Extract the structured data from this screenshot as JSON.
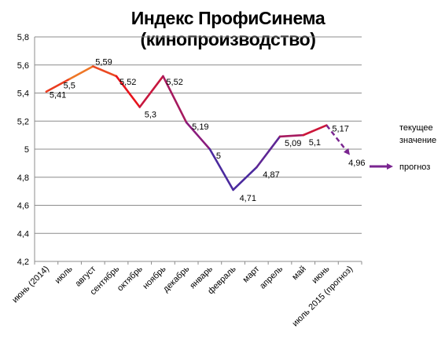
{
  "chart_data": {
    "type": "line",
    "title": "Индекс ПрофиСинема (кинопроизводство)",
    "categories": [
      "июнь (2014)",
      "июль",
      "август",
      "сентябрь",
      "октябрь",
      "ноябрь",
      "декабрь",
      "январь",
      "февраль",
      "март",
      "апрель",
      "май",
      "июнь",
      "июль 2015 (прогноз)"
    ],
    "values": [
      5.41,
      5.5,
      5.59,
      5.52,
      5.3,
      5.52,
      5.19,
      5.0,
      4.71,
      4.87,
      5.09,
      5.1,
      5.17,
      4.96
    ],
    "data_labels": [
      "5,41",
      "5,5",
      "5,59",
      "5,52",
      "5,3",
      "5,52",
      "5,19",
      "5",
      "4,71",
      "4,87",
      "5,09",
      "5,1",
      "5,17",
      "4,96"
    ],
    "forecast_index": 13,
    "ylim": [
      4.2,
      5.8
    ],
    "yticks": [
      "4,2",
      "4,4",
      "4,6",
      "4,8",
      "5",
      "5,2",
      "5,4",
      "5,6",
      "5,8"
    ],
    "grid": true,
    "legend_position": "right",
    "legend": [
      {
        "label_line1": "текущее",
        "label_line2": "значение",
        "style": "solid-gradient"
      },
      {
        "label_line1": "прогноз",
        "label_line2": "",
        "style": "dashed-arrow"
      }
    ],
    "colors": {
      "early": "#e8141c",
      "peak": "#f0982a",
      "late": "#4b2a9e",
      "mid": "#8a1c7c",
      "forecast": "#7a2590",
      "grid": "#8c8c8c",
      "axis": "#8c8c8c"
    }
  }
}
